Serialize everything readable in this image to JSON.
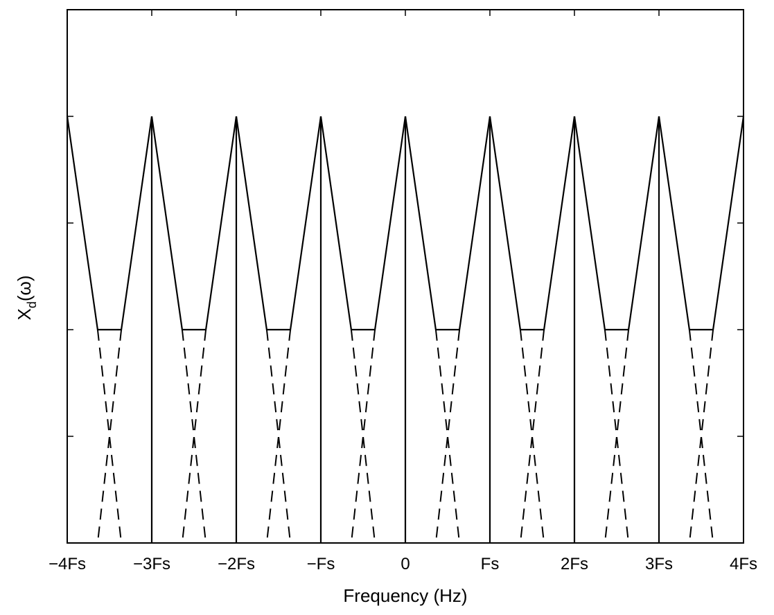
{
  "chart_data": {
    "type": "line",
    "title": "",
    "xlabel": "Frequency (Hz)",
    "ylabel_main": "X",
    "ylabel_sub": "d",
    "ylabel_arg": "(ω)",
    "xlim": [
      -4,
      4
    ],
    "ylim": [
      0,
      1
    ],
    "x_ticks": [
      {
        "value": -4,
        "label": "−4Fs"
      },
      {
        "value": -3,
        "label": "−3Fs"
      },
      {
        "value": -2,
        "label": "−2Fs"
      },
      {
        "value": -1,
        "label": "−Fs"
      },
      {
        "value": 0,
        "label": "0"
      },
      {
        "value": 1,
        "label": "Fs"
      },
      {
        "value": 2,
        "label": "2Fs"
      },
      {
        "value": 3,
        "label": "3Fs"
      },
      {
        "value": 4,
        "label": "4Fs"
      }
    ],
    "y_ticks": [
      0,
      0.2,
      0.4,
      0.6,
      0.8,
      1.0
    ],
    "y_tick_labels_shown": false,
    "grid": false,
    "series": [
      {
        "style": "solid",
        "x": [
          -4,
          -3.64,
          -3.36,
          -3,
          -2.64,
          -2.36,
          -2,
          -1.64,
          -1.36,
          -1,
          -0.64,
          -0.36,
          0,
          0.36,
          0.64,
          1,
          1.36,
          1.64,
          2,
          2.36,
          2.64,
          3,
          3.36,
          3.64,
          4
        ],
        "y": [
          0.8,
          0.4,
          0.4,
          0.8,
          0.4,
          0.4,
          0.8,
          0.4,
          0.4,
          0.8,
          0.4,
          0.4,
          0.8,
          0.4,
          0.4,
          0.8,
          0.4,
          0.4,
          0.8,
          0.4,
          0.4,
          0.8,
          0.4,
          0.4,
          0.8
        ]
      }
    ],
    "stems": {
      "style": "solid",
      "x": [
        -3,
        -2,
        -1,
        0,
        1,
        2,
        3
      ],
      "y": 0.8
    },
    "dashed_tails": {
      "style": "dashed",
      "segments": [
        {
          "x": [
            -3.64,
            -3.64
          ],
          "y": [
            0.4,
            0.0
          ],
          "x_end": -3.64
        },
        {
          "x_start": -3.64,
          "x_end": -3.36
        }
      ],
      "peak_centers": [
        -4,
        -3,
        -2,
        -1,
        0,
        1,
        2,
        3,
        4
      ],
      "top_y": 0.4,
      "bottom_y": 0.0,
      "top_offset": 0.36,
      "bottom_offset": 0.64
    }
  }
}
